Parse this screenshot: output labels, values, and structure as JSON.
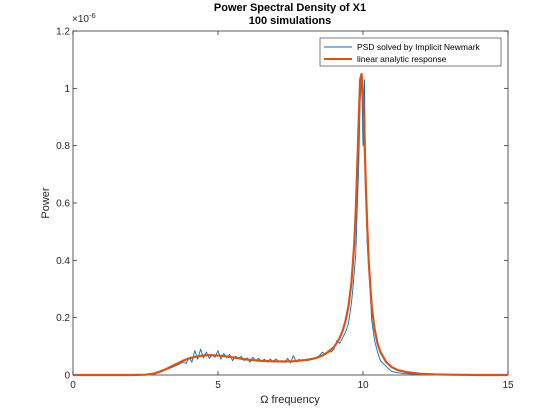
{
  "chart_data": {
    "type": "line",
    "title": "Power Spectral Density of X1",
    "subtitle": "100 simulations",
    "xlabel": "Ω frequency",
    "ylabel": "Power",
    "xlim": [
      0,
      15
    ],
    "ylim": [
      0,
      1.2
    ],
    "y_exponent_label": "×10",
    "y_exponent_power": "-6",
    "x_ticks": [
      "0",
      "5",
      "10",
      "15"
    ],
    "y_ticks": [
      "0",
      "0.2",
      "0.4",
      "0.6",
      "0.8",
      "1",
      "1.2"
    ],
    "grid": false,
    "legend_position": "top-right",
    "series": [
      {
        "name": "PSD solved by Implicit Newmark",
        "color": "#0072BD",
        "x": [
          0,
          0.5,
          1,
          1.5,
          2,
          2.5,
          2.8,
          3,
          3.2,
          3.4,
          3.6,
          3.8,
          3.9,
          4.0,
          4.1,
          4.2,
          4.3,
          4.4,
          4.5,
          4.6,
          4.7,
          4.8,
          4.9,
          5.0,
          5.1,
          5.2,
          5.3,
          5.4,
          5.5,
          5.6,
          5.7,
          5.8,
          5.9,
          6.0,
          6.1,
          6.2,
          6.3,
          6.4,
          6.5,
          6.6,
          6.7,
          6.8,
          6.9,
          7.0,
          7.1,
          7.2,
          7.3,
          7.4,
          7.5,
          7.6,
          7.7,
          7.8,
          7.9,
          8.0,
          8.1,
          8.2,
          8.3,
          8.4,
          8.5,
          8.6,
          8.7,
          8.8,
          8.9,
          9.0,
          9.1,
          9.2,
          9.3,
          9.4,
          9.5,
          9.6,
          9.65,
          9.7,
          9.75,
          9.8,
          9.85,
          9.9,
          9.95,
          10.0,
          10.05,
          10.1,
          10.15,
          10.2,
          10.3,
          10.4,
          10.5,
          10.6,
          10.7,
          10.8,
          10.9,
          11.0,
          11.2,
          11.4,
          11.6,
          11.8,
          12.0,
          12.5,
          13.0,
          13.5,
          14.0,
          14.5,
          15.0
        ],
        "values": [
          0,
          0,
          0,
          0,
          0,
          0.001,
          0.004,
          0.01,
          0.018,
          0.026,
          0.035,
          0.045,
          0.04,
          0.06,
          0.045,
          0.085,
          0.055,
          0.09,
          0.06,
          0.08,
          0.058,
          0.07,
          0.062,
          0.085,
          0.055,
          0.075,
          0.06,
          0.072,
          0.05,
          0.066,
          0.058,
          0.065,
          0.05,
          0.06,
          0.045,
          0.062,
          0.05,
          0.058,
          0.048,
          0.055,
          0.045,
          0.055,
          0.048,
          0.056,
          0.046,
          0.05,
          0.044,
          0.058,
          0.042,
          0.068,
          0.045,
          0.055,
          0.048,
          0.052,
          0.05,
          0.058,
          0.055,
          0.06,
          0.068,
          0.08,
          0.07,
          0.085,
          0.08,
          0.09,
          0.12,
          0.11,
          0.13,
          0.15,
          0.18,
          0.25,
          0.3,
          0.36,
          0.42,
          0.58,
          0.72,
          0.95,
          1.04,
          0.8,
          1.03,
          0.62,
          0.45,
          0.38,
          0.19,
          0.12,
          0.08,
          0.05,
          0.04,
          0.03,
          0.02,
          0.012,
          0.008,
          0.005,
          0.004,
          0.003,
          0.002,
          0.001,
          0,
          0,
          0,
          0,
          0
        ]
      },
      {
        "name": "linear analytic response",
        "color": "#D95319",
        "x": [
          0,
          0.5,
          1,
          1.5,
          2,
          2.5,
          2.8,
          3,
          3.2,
          3.4,
          3.6,
          3.8,
          4.0,
          4.2,
          4.4,
          4.6,
          4.8,
          5.0,
          5.2,
          5.4,
          5.6,
          5.8,
          6.0,
          6.4,
          6.8,
          7.2,
          7.6,
          8.0,
          8.2,
          8.4,
          8.6,
          8.8,
          9.0,
          9.1,
          9.2,
          9.3,
          9.4,
          9.5,
          9.6,
          9.7,
          9.75,
          9.8,
          9.85,
          9.9,
          9.95,
          10.0,
          10.05,
          10.1,
          10.15,
          10.2,
          10.3,
          10.4,
          10.5,
          10.6,
          10.8,
          11.0,
          11.2,
          11.5,
          12.0,
          12.5,
          13,
          14,
          15
        ],
        "values": [
          0,
          0,
          0,
          0,
          0,
          0.001,
          0.005,
          0.012,
          0.02,
          0.03,
          0.04,
          0.05,
          0.058,
          0.063,
          0.067,
          0.069,
          0.069,
          0.068,
          0.066,
          0.063,
          0.06,
          0.057,
          0.054,
          0.05,
          0.048,
          0.047,
          0.048,
          0.052,
          0.055,
          0.06,
          0.068,
          0.08,
          0.098,
          0.112,
          0.13,
          0.155,
          0.19,
          0.24,
          0.32,
          0.46,
          0.57,
          0.72,
          0.88,
          1.03,
          1.05,
          0.98,
          0.83,
          0.65,
          0.51,
          0.39,
          0.24,
          0.16,
          0.11,
          0.08,
          0.045,
          0.027,
          0.017,
          0.01,
          0.004,
          0.002,
          0.001,
          0,
          0
        ]
      }
    ]
  }
}
